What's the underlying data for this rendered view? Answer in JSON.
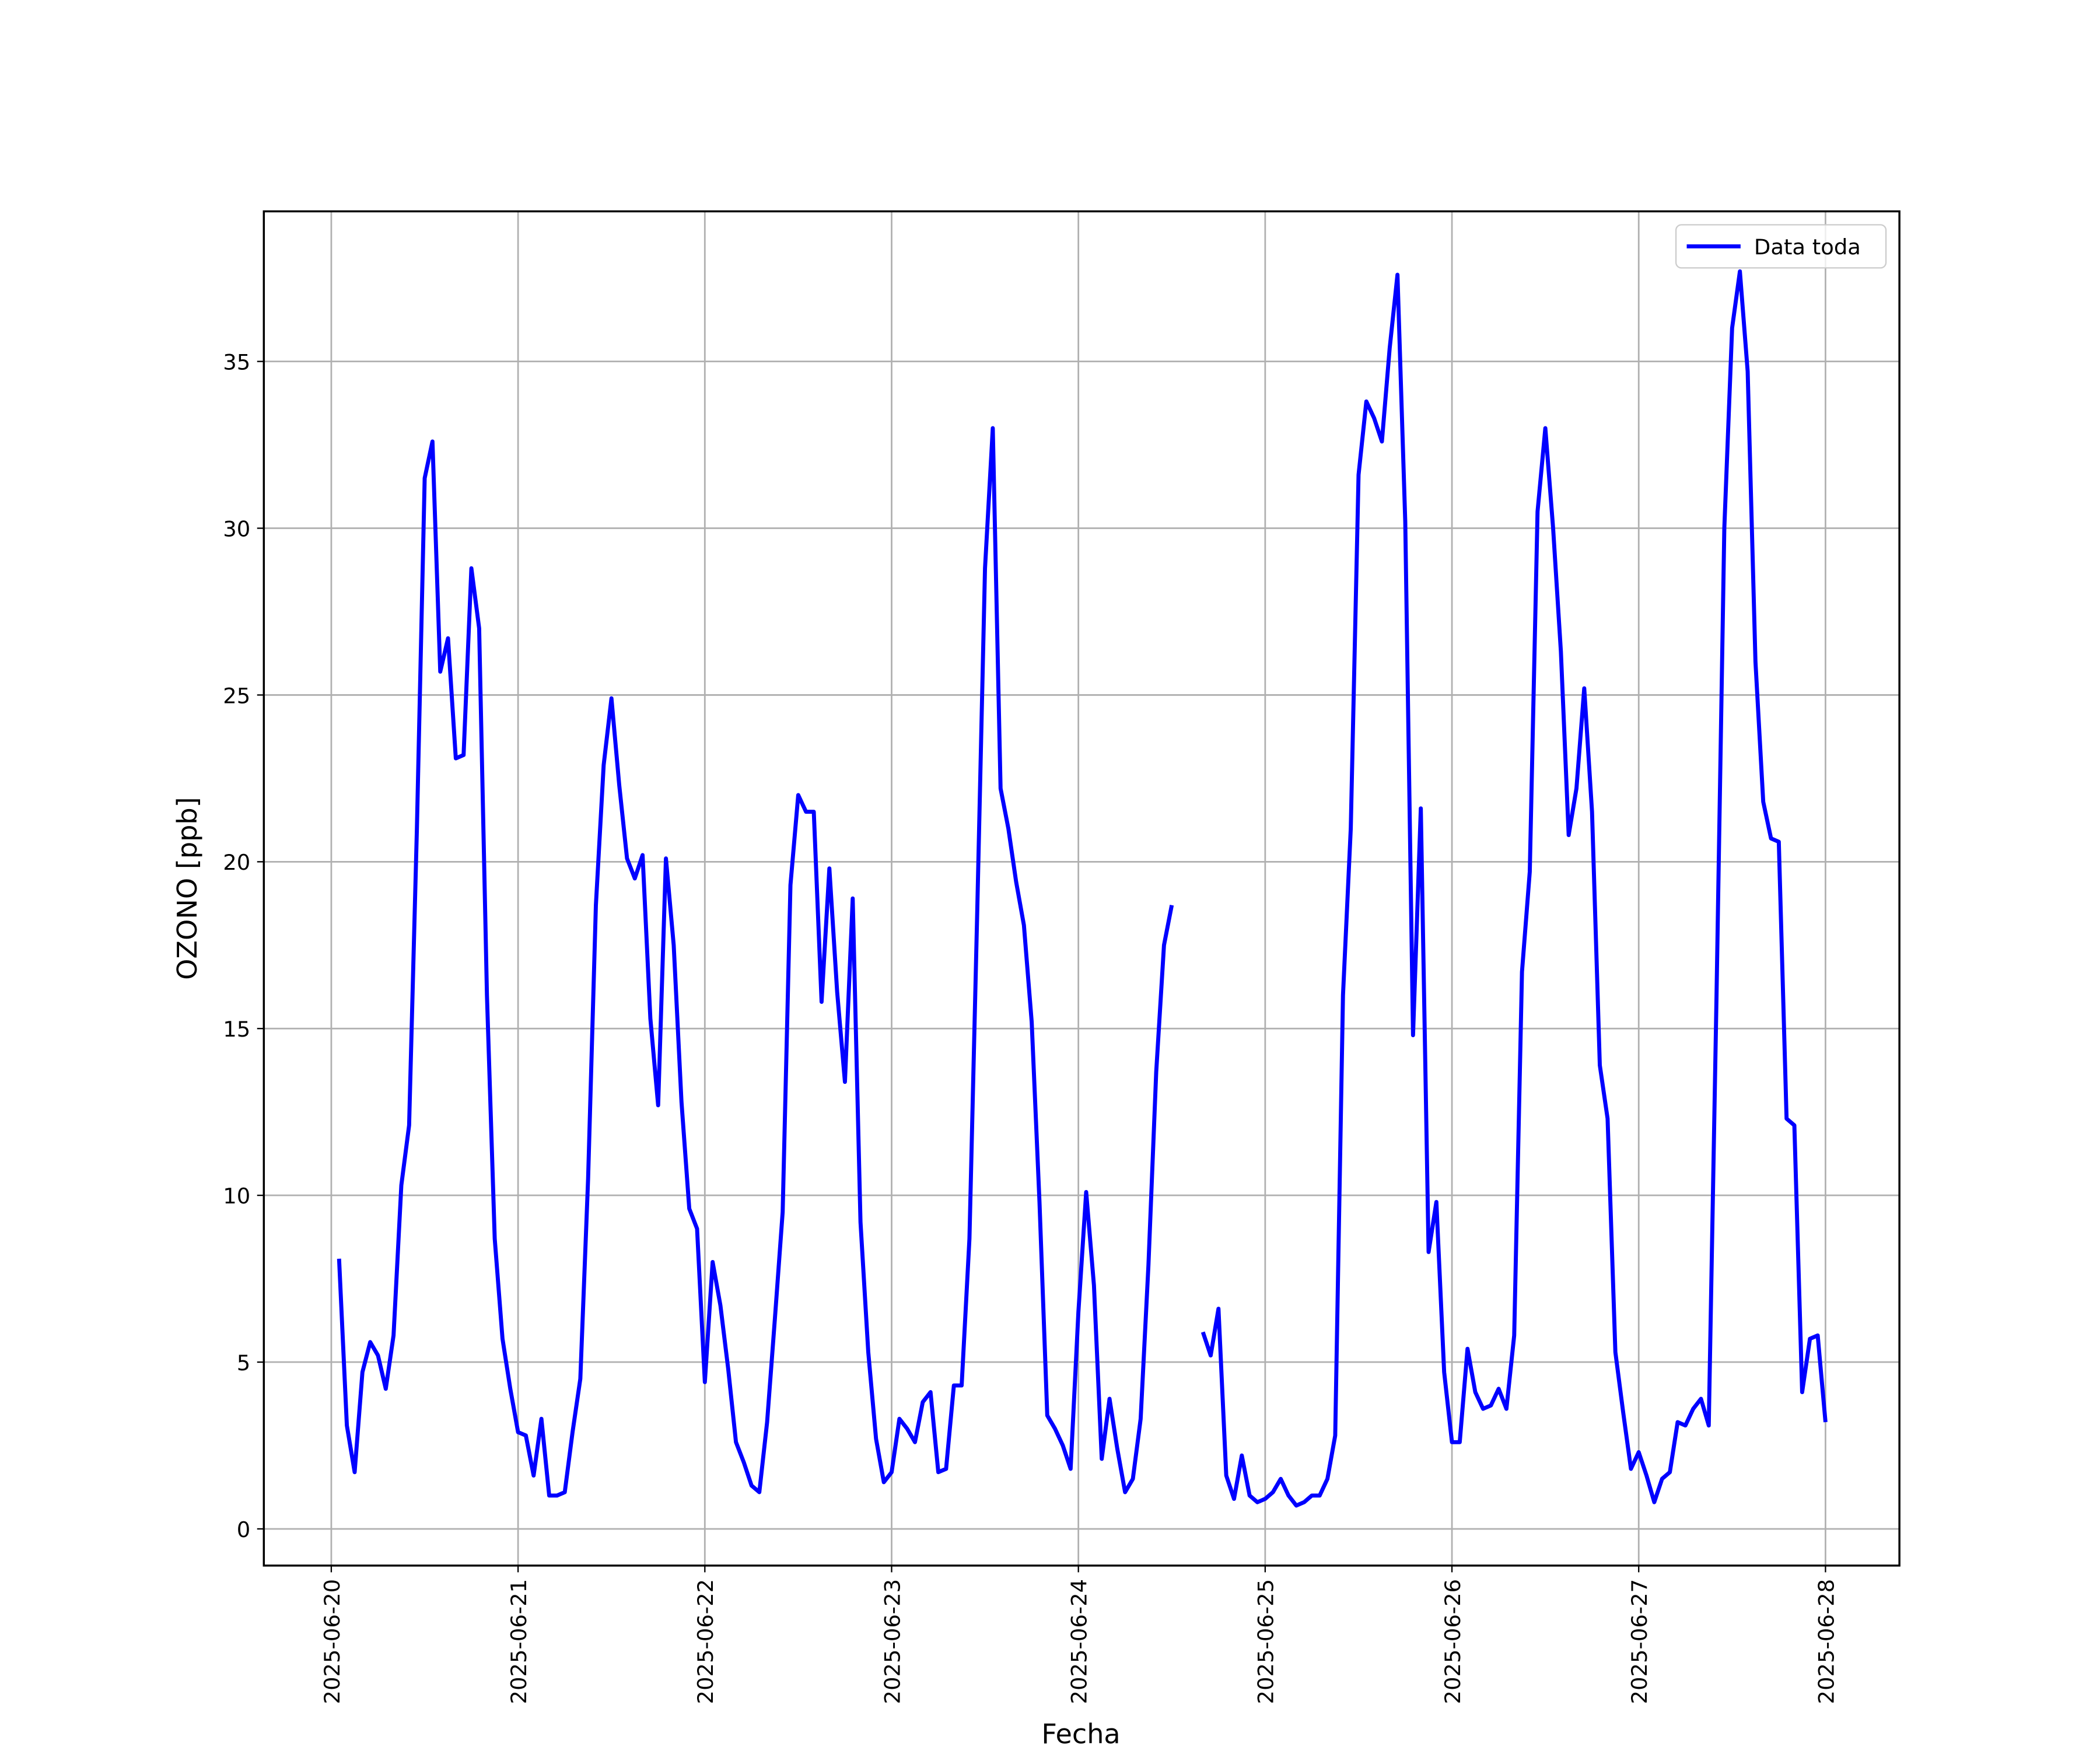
{
  "chart_data": {
    "type": "line",
    "xlabel": "Fecha",
    "ylabel": "OZONO [ppb]",
    "x": [
      "2025-06-20T01:00",
      "2025-06-20T02:00",
      "2025-06-20T03:00",
      "2025-06-20T04:00",
      "2025-06-20T05:00",
      "2025-06-20T06:00",
      "2025-06-20T07:00",
      "2025-06-20T08:00",
      "2025-06-20T09:00",
      "2025-06-20T10:00",
      "2025-06-20T11:00",
      "2025-06-20T12:00",
      "2025-06-20T13:00",
      "2025-06-20T14:00",
      "2025-06-20T15:00",
      "2025-06-20T16:00",
      "2025-06-20T17:00",
      "2025-06-20T18:00",
      "2025-06-20T19:00",
      "2025-06-20T20:00",
      "2025-06-20T21:00",
      "2025-06-20T22:00",
      "2025-06-20T23:00",
      "2025-06-21T00:00",
      "2025-06-21T01:00",
      "2025-06-21T02:00",
      "2025-06-21T03:00",
      "2025-06-21T04:00",
      "2025-06-21T05:00",
      "2025-06-21T06:00",
      "2025-06-21T07:00",
      "2025-06-21T08:00",
      "2025-06-21T09:00",
      "2025-06-21T10:00",
      "2025-06-21T11:00",
      "2025-06-21T12:00",
      "2025-06-21T13:00",
      "2025-06-21T14:00",
      "2025-06-21T15:00",
      "2025-06-21T16:00",
      "2025-06-21T17:00",
      "2025-06-21T18:00",
      "2025-06-21T19:00",
      "2025-06-21T20:00",
      "2025-06-21T21:00",
      "2025-06-21T22:00",
      "2025-06-21T23:00",
      "2025-06-22T00:00",
      "2025-06-22T01:00",
      "2025-06-22T02:00",
      "2025-06-22T03:00",
      "2025-06-22T04:00",
      "2025-06-22T05:00",
      "2025-06-22T06:00",
      "2025-06-22T07:00",
      "2025-06-22T08:00",
      "2025-06-22T09:00",
      "2025-06-22T10:00",
      "2025-06-22T11:00",
      "2025-06-22T12:00",
      "2025-06-22T13:00",
      "2025-06-22T14:00",
      "2025-06-22T15:00",
      "2025-06-22T16:00",
      "2025-06-22T17:00",
      "2025-06-22T18:00",
      "2025-06-22T19:00",
      "2025-06-22T20:00",
      "2025-06-22T21:00",
      "2025-06-22T22:00",
      "2025-06-22T23:00",
      "2025-06-23T00:00",
      "2025-06-23T01:00",
      "2025-06-23T02:00",
      "2025-06-23T03:00",
      "2025-06-23T04:00",
      "2025-06-23T05:00",
      "2025-06-23T06:00",
      "2025-06-23T07:00",
      "2025-06-23T08:00",
      "2025-06-23T09:00",
      "2025-06-23T10:00",
      "2025-06-23T11:00",
      "2025-06-23T12:00",
      "2025-06-23T13:00",
      "2025-06-23T14:00",
      "2025-06-23T15:00",
      "2025-06-23T16:00",
      "2025-06-23T17:00",
      "2025-06-23T18:00",
      "2025-06-23T19:00",
      "2025-06-23T20:00",
      "2025-06-23T21:00",
      "2025-06-23T22:00",
      "2025-06-23T23:00",
      "2025-06-24T00:00",
      "2025-06-24T01:00",
      "2025-06-24T02:00",
      "2025-06-24T03:00",
      "2025-06-24T04:00",
      "2025-06-24T05:00",
      "2025-06-24T06:00",
      "2025-06-24T07:00",
      "2025-06-24T08:00",
      "2025-06-24T09:00",
      "2025-06-24T10:00",
      "2025-06-24T11:00",
      "2025-06-24T12:00",
      "2025-06-24T13:00",
      "2025-06-24T14:00",
      "2025-06-24T15:00",
      "2025-06-24T16:00",
      "2025-06-24T17:00",
      "2025-06-24T18:00",
      "2025-06-24T19:00",
      "2025-06-24T20:00",
      "2025-06-24T21:00",
      "2025-06-24T22:00",
      "2025-06-24T23:00",
      "2025-06-25T00:00",
      "2025-06-25T01:00",
      "2025-06-25T02:00",
      "2025-06-25T03:00",
      "2025-06-25T04:00",
      "2025-06-25T05:00",
      "2025-06-25T06:00",
      "2025-06-25T07:00",
      "2025-06-25T08:00",
      "2025-06-25T09:00",
      "2025-06-25T10:00",
      "2025-06-25T11:00",
      "2025-06-25T12:00",
      "2025-06-25T13:00",
      "2025-06-25T14:00",
      "2025-06-25T15:00",
      "2025-06-25T16:00",
      "2025-06-25T17:00",
      "2025-06-25T18:00",
      "2025-06-25T19:00",
      "2025-06-25T20:00",
      "2025-06-25T21:00",
      "2025-06-25T22:00",
      "2025-06-25T23:00",
      "2025-06-26T00:00",
      "2025-06-26T01:00",
      "2025-06-26T02:00",
      "2025-06-26T03:00",
      "2025-06-26T04:00",
      "2025-06-26T05:00",
      "2025-06-26T06:00",
      "2025-06-26T07:00",
      "2025-06-26T08:00",
      "2025-06-26T09:00",
      "2025-06-26T10:00",
      "2025-06-26T11:00",
      "2025-06-26T12:00",
      "2025-06-26T13:00",
      "2025-06-26T14:00",
      "2025-06-26T15:00",
      "2025-06-26T16:00",
      "2025-06-26T17:00",
      "2025-06-26T18:00",
      "2025-06-26T19:00",
      "2025-06-26T20:00",
      "2025-06-26T21:00",
      "2025-06-26T22:00",
      "2025-06-26T23:00",
      "2025-06-27T00:00",
      "2025-06-27T01:00",
      "2025-06-27T02:00",
      "2025-06-27T03:00",
      "2025-06-27T04:00",
      "2025-06-27T05:00",
      "2025-06-27T06:00",
      "2025-06-27T07:00",
      "2025-06-27T08:00",
      "2025-06-27T09:00",
      "2025-06-27T10:00",
      "2025-06-27T11:00",
      "2025-06-27T12:00",
      "2025-06-27T13:00",
      "2025-06-27T14:00",
      "2025-06-27T15:00",
      "2025-06-27T16:00",
      "2025-06-27T17:00",
      "2025-06-27T18:00",
      "2025-06-27T19:00",
      "2025-06-27T20:00",
      "2025-06-27T21:00",
      "2025-06-27T22:00",
      "2025-06-27T23:00",
      "2025-06-28T00:00"
    ],
    "series": [
      {
        "name": "Data toda",
        "color": "#0000ff",
        "values": [
          8.1,
          3.1,
          1.7,
          4.7,
          5.6,
          5.2,
          4.2,
          5.8,
          10.3,
          12.1,
          21,
          31.5,
          32.6,
          25.7,
          26.7,
          23.1,
          23.2,
          28.8,
          27.0,
          16,
          8.7,
          5.7,
          4.2,
          2.9,
          2.8,
          1.6,
          3.3,
          1.0,
          1.0,
          1.1,
          2.9,
          4.5,
          10.5,
          18.7,
          22.9,
          24.9,
          22.3,
          20.1,
          19.5,
          20.2,
          15.3,
          12.7,
          20.1,
          17.5,
          12.8,
          9.6,
          9.0,
          4.4,
          8.0,
          6.7,
          4.8,
          2.6,
          2.0,
          1.3,
          1.1,
          3.2,
          6.3,
          9.5,
          19.3,
          22.0,
          21.5,
          21.5,
          15.8,
          19.8,
          16.1,
          13.4,
          18.9,
          9.2,
          5.3,
          2.7,
          1.4,
          1.7,
          3.3,
          3.0,
          2.6,
          3.8,
          4.1,
          1.7,
          1.8,
          4.3,
          4.3,
          8.7,
          18.5,
          28.8,
          33.0,
          22.2,
          21.0,
          19.4,
          18.1,
          15.2,
          9.8,
          3.4,
          3.0,
          2.5,
          1.8,
          6.5,
          10.1,
          7.3,
          2.1,
          3.9,
          2.4,
          1.1,
          1.5,
          3.3,
          7.9,
          13.7,
          17.5,
          18.7,
          null,
          null,
          null,
          5.9,
          5.2,
          6.6,
          1.6,
          0.9,
          2.2,
          1.0,
          0.8,
          0.9,
          1.1,
          1.5,
          1.0,
          0.7,
          0.8,
          1.0,
          1.0,
          1.5,
          2.8,
          16,
          21,
          31.6,
          33.8,
          33.3,
          32.6,
          35.4,
          37.6,
          30.2,
          14.8,
          21.6,
          8.3,
          9.8,
          4.7,
          2.6,
          2.6,
          5.4,
          4.1,
          3.6,
          3.7,
          4.2,
          3.6,
          5.8,
          16.7,
          19.7,
          30.5,
          33.0,
          30,
          26.3,
          20.8,
          22.2,
          25.2,
          21.5,
          13.9,
          12.3,
          5.3,
          3.5,
          1.8,
          2.3,
          1.6,
          0.8,
          1.5,
          1.7,
          3.2,
          3.1,
          3.6,
          3.9,
          3.1,
          16,
          30,
          36,
          37.7,
          34.7,
          26,
          21.8,
          20.7,
          20.6,
          12.3,
          12.1,
          4.1,
          5.7,
          5.8,
          3.2
        ]
      }
    ],
    "xlim": [
      "2025-06-19T15:20",
      "2025-06-28T09:30"
    ],
    "xticks": [
      "2025-06-20",
      "2025-06-21",
      "2025-06-22",
      "2025-06-23",
      "2025-06-24",
      "2025-06-25",
      "2025-06-26",
      "2025-06-27",
      "2025-06-28"
    ],
    "ylim": [
      -1.1,
      39.5
    ],
    "yticks": [
      0,
      5,
      10,
      15,
      20,
      25,
      30,
      35
    ],
    "grid": true,
    "legend": "upper right"
  }
}
